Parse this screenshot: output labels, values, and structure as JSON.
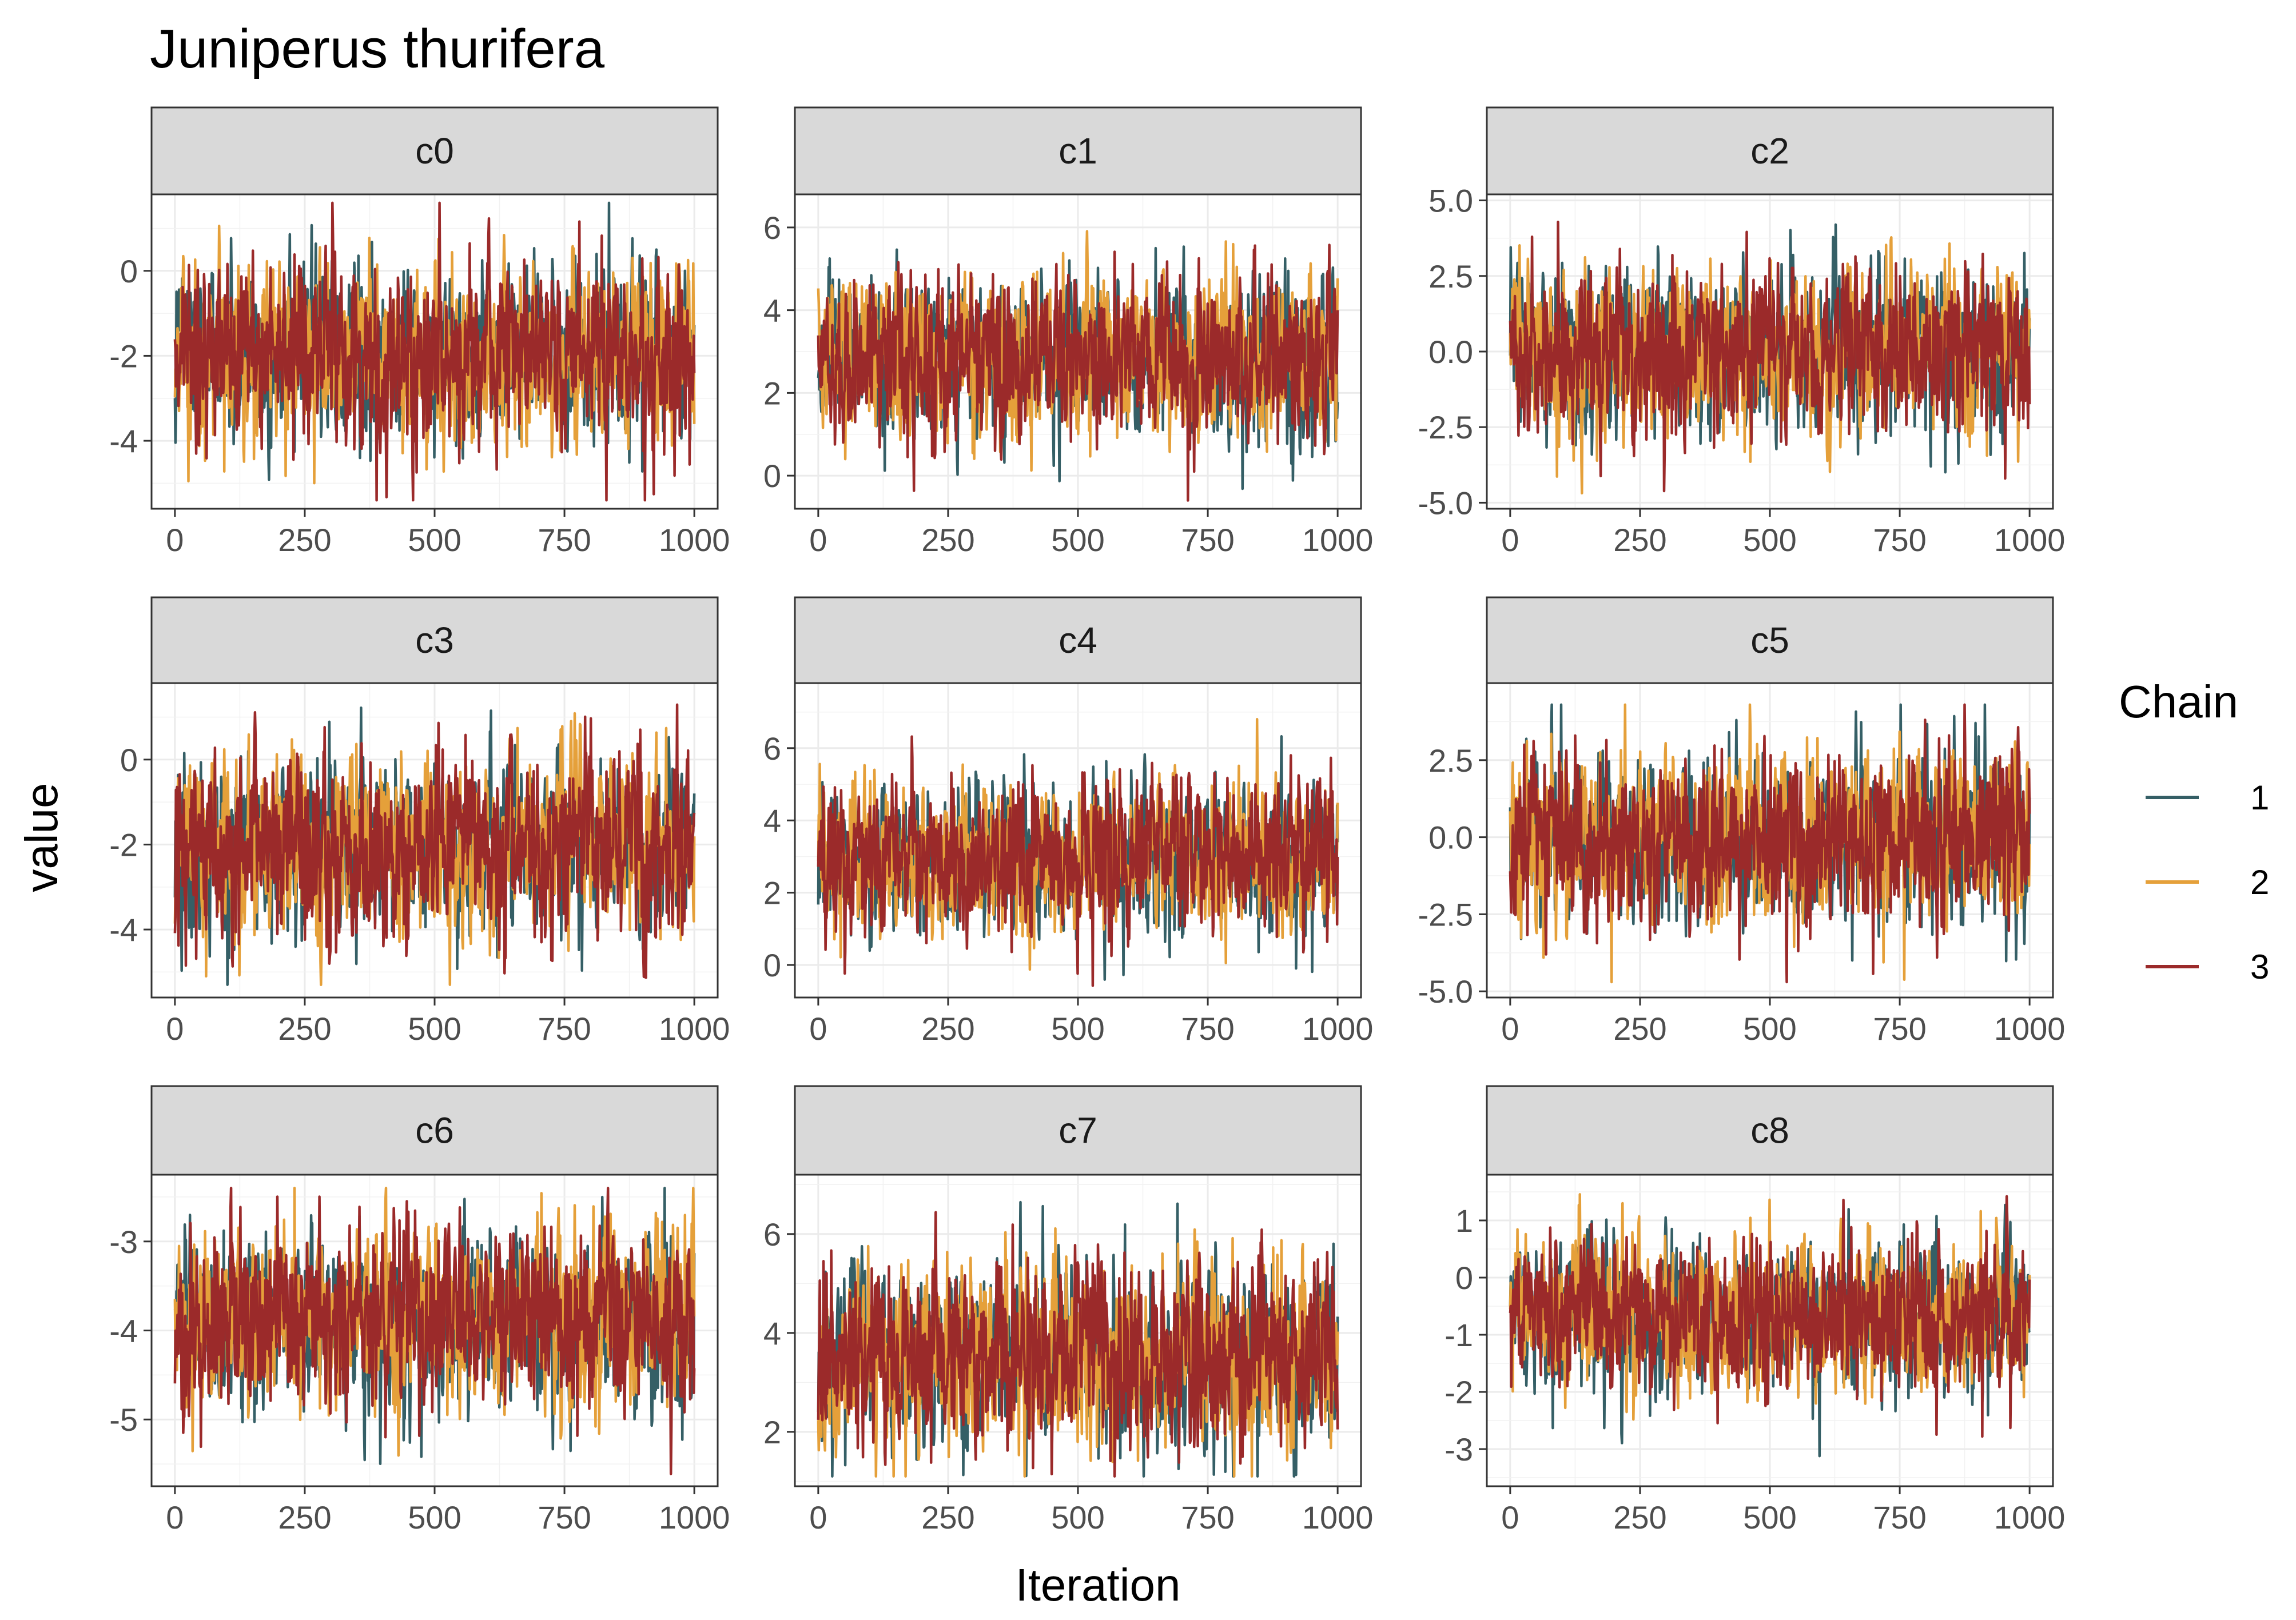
{
  "chart_data": {
    "type": "line",
    "title": "Juniperus thurifera",
    "xlabel": "Iteration",
    "ylabel": "value",
    "legend": {
      "title": "Chain",
      "placement": "right",
      "entries": [
        {
          "label": "1",
          "color": "#355f66"
        },
        {
          "label": "2",
          "color": "#e5a03a"
        },
        {
          "label": "3",
          "color": "#9b2a2a"
        }
      ]
    },
    "xlim": [
      0,
      1000
    ],
    "xticks": [
      0,
      250,
      500,
      750,
      1000
    ],
    "xtick_labels": [
      "0",
      "250",
      "500",
      "750",
      "1000"
    ],
    "grid": true,
    "panel_border": "#333333",
    "strip_background": "#d9d9d9",
    "series_iterations": 1000,
    "panels": [
      {
        "name": "c0",
        "ylim": [
          -5.6,
          1.8
        ],
        "yticks": [
          0,
          -2,
          -4
        ],
        "ytick_labels": [
          "0",
          "-2",
          "-4"
        ],
        "center": -2.0,
        "spread": 0.95,
        "min": -5.4,
        "max": 1.6
      },
      {
        "name": "c1",
        "ylim": [
          -0.8,
          6.8
        ],
        "yticks": [
          6,
          4,
          2,
          0
        ],
        "ytick_labels": [
          "6",
          "4",
          "2",
          "0"
        ],
        "center": 2.9,
        "spread": 0.9,
        "min": -0.6,
        "max": 6.4
      },
      {
        "name": "c2",
        "ylim": [
          -5.2,
          5.2
        ],
        "yticks": [
          5.0,
          2.5,
          0.0,
          -2.5,
          -5.0
        ],
        "ytick_labels": [
          "5.0",
          "2.5",
          "0.0",
          "-2.5",
          "-5.0"
        ],
        "center": 0.0,
        "spread": 1.25,
        "min": -4.8,
        "max": 4.8
      },
      {
        "name": "c3",
        "ylim": [
          -5.6,
          1.8
        ],
        "yticks": [
          0,
          -2,
          -4
        ],
        "ytick_labels": [
          "0",
          "-2",
          "-4"
        ],
        "center": -2.0,
        "spread": 0.95,
        "min": -5.3,
        "max": 1.4
      },
      {
        "name": "c4",
        "ylim": [
          -0.9,
          7.8
        ],
        "yticks": [
          6,
          4,
          2,
          0
        ],
        "ytick_labels": [
          "6",
          "4",
          "2",
          "0"
        ],
        "center": 3.0,
        "spread": 0.95,
        "min": -0.7,
        "max": 7.3
      },
      {
        "name": "c5",
        "ylim": [
          -5.2,
          5.0
        ],
        "yticks": [
          2.5,
          0.0,
          -2.5,
          -5.0
        ],
        "ytick_labels": [
          "2.5",
          "0.0",
          "-2.5",
          "-5.0"
        ],
        "center": 0.0,
        "spread": 1.3,
        "min": -4.7,
        "max": 4.3
      },
      {
        "name": "c6",
        "ylim": [
          -5.75,
          -2.25
        ],
        "yticks": [
          -3,
          -4,
          -5
        ],
        "ytick_labels": [
          "-3",
          "-4",
          "-5"
        ],
        "center": -3.9,
        "spread": 0.45,
        "min": -5.7,
        "max": -2.4
      },
      {
        "name": "c7",
        "ylim": [
          0.9,
          7.2
        ],
        "yticks": [
          6,
          4,
          2
        ],
        "ytick_labels": [
          "6",
          "4",
          "2"
        ],
        "center": 3.6,
        "spread": 0.85,
        "min": 1.1,
        "max": 6.9
      },
      {
        "name": "c8",
        "ylim": [
          -3.65,
          1.8
        ],
        "yticks": [
          1,
          0,
          -1,
          -2,
          -3
        ],
        "ytick_labels": [
          "1",
          "0",
          "-1",
          "-2",
          "-3"
        ],
        "center": -0.7,
        "spread": 0.6,
        "min": -3.5,
        "max": 1.5
      }
    ]
  }
}
